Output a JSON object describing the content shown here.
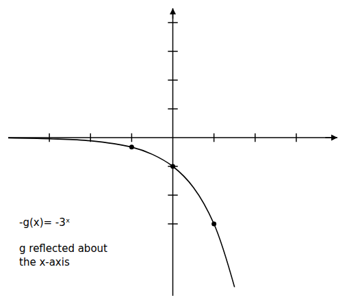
{
  "chart_data": {
    "type": "line",
    "series": [
      {
        "type": "line",
        "color": "#000000",
        "x": [
          -4,
          -3,
          -2,
          -1,
          -0.5,
          0,
          0.5,
          1,
          1.5
        ],
        "values": [
          -0.01,
          -0.04,
          -0.11,
          -0.33,
          -0.58,
          -1,
          -1.73,
          -3,
          -5.2
        ]
      },
      {
        "type": "scatter",
        "color": "#000000",
        "marker": "circle",
        "x": [
          -1,
          0,
          1
        ],
        "values": [
          -0.33,
          -1,
          -3
        ]
      }
    ],
    "xlim": [
      -4,
      4
    ],
    "ylim": [
      -5.5,
      4.5
    ],
    "xticks": [
      -3,
      -2,
      -1,
      1,
      2,
      3
    ],
    "yticks": [
      -3,
      -2,
      -1,
      1,
      2,
      3,
      4
    ],
    "tick_labels": false,
    "grid": false,
    "annotations": [
      "-g(x)= -3ˣ",
      "g reflected about the x-axis"
    ]
  }
}
